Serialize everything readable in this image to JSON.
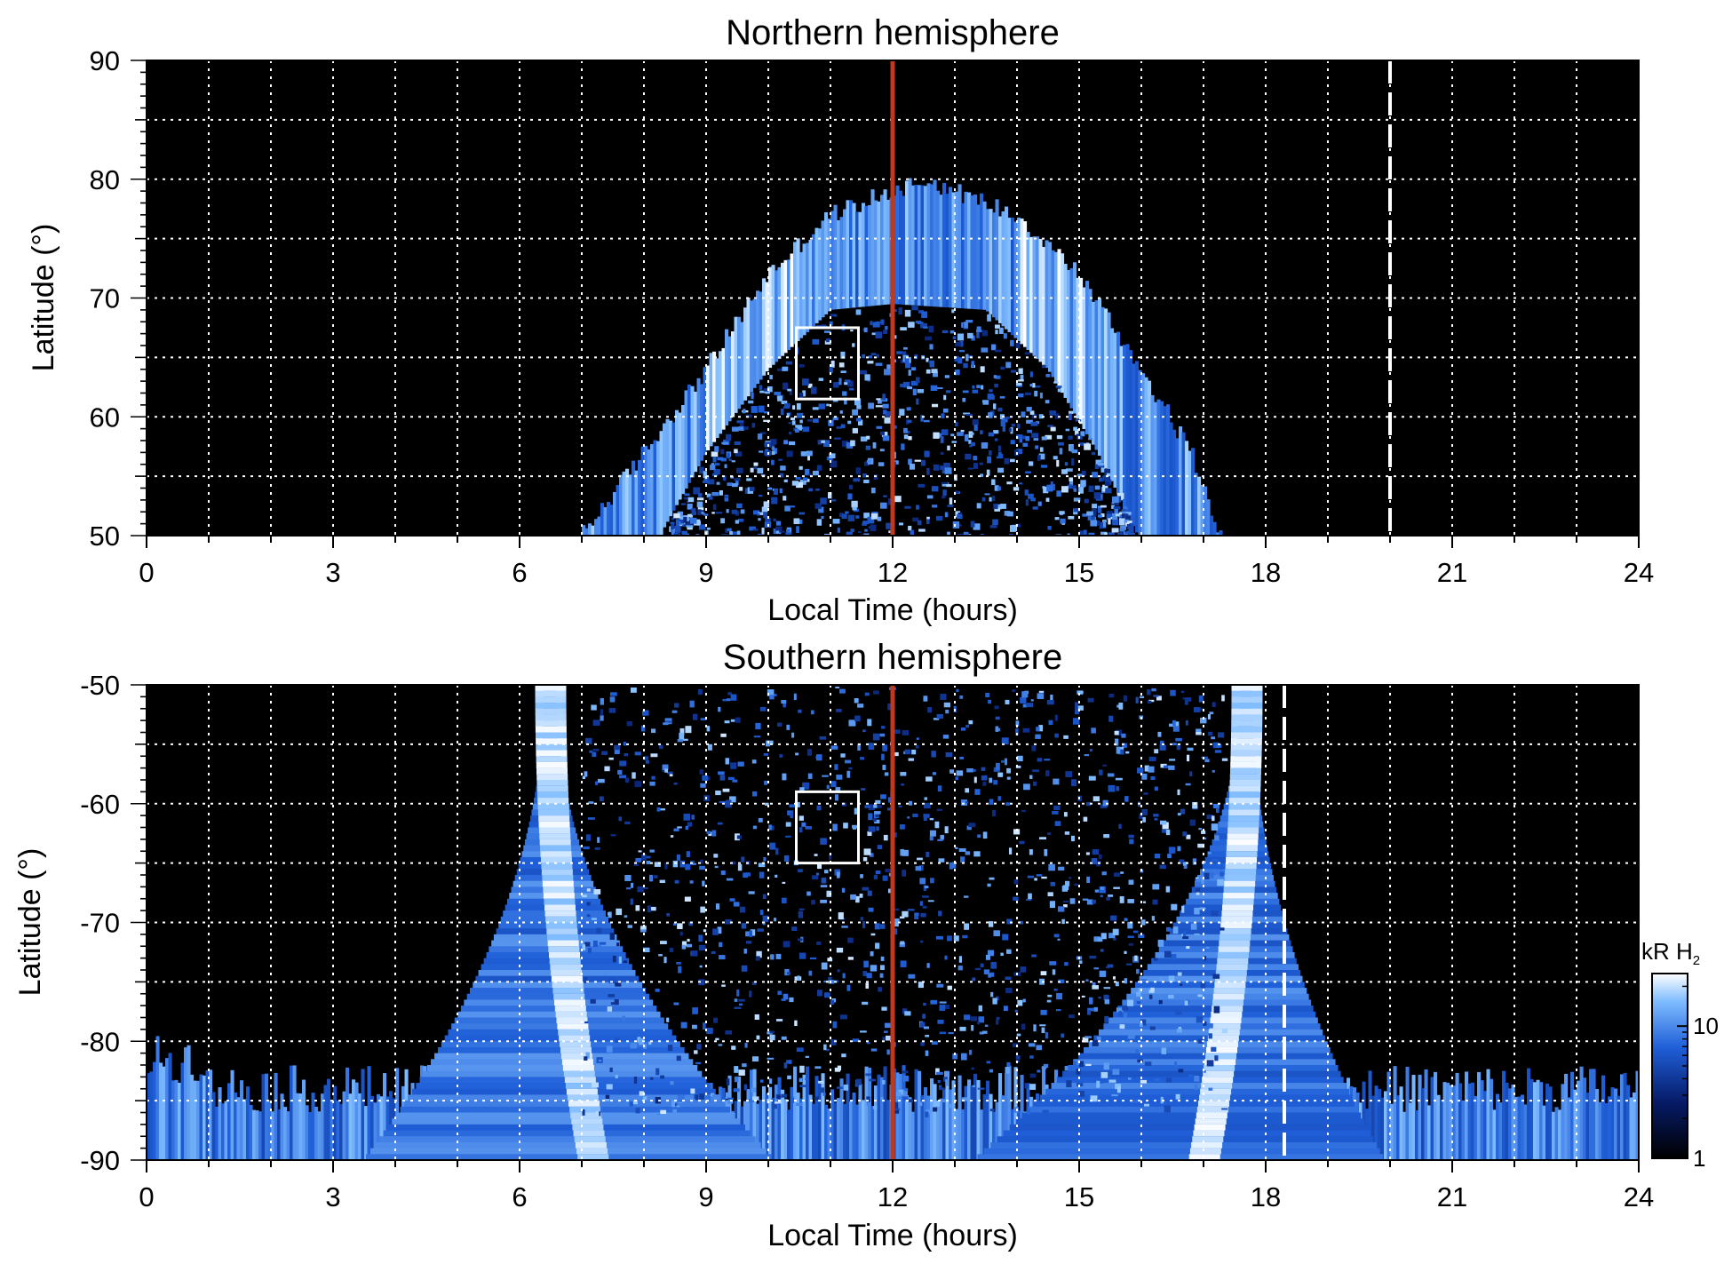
{
  "figure": {
    "colors": {
      "background": "#000000",
      "aurora_dark": "#0a2a8a",
      "aurora_mid": "#1f6fe6",
      "aurora_bright": "#9fd0ff",
      "noon_line": "#c0391b",
      "grid": "#ffffff",
      "box": "#ffffff"
    }
  },
  "chart_data": [
    {
      "type": "heatmap",
      "title": "Northern hemisphere",
      "xlabel": "Local Time (hours)",
      "ylabel": "Latitude (°)",
      "xlim": [
        0,
        24
      ],
      "ylim": [
        50,
        90
      ],
      "xticks": [
        "0",
        "3",
        "6",
        "9",
        "12",
        "15",
        "18",
        "21",
        "24"
      ],
      "yticks": [
        "50",
        "60",
        "70",
        "80",
        "90"
      ],
      "grid": true,
      "noon_line_x": 12,
      "dashed_line_x": 20,
      "box": {
        "x": [
          10.45,
          11.45
        ],
        "y": [
          61.5,
          67.5
        ]
      },
      "auroral_oval": {
        "outer_lat": [
          [
            7.0,
            50
          ],
          [
            8.0,
            57
          ],
          [
            9.0,
            64
          ],
          [
            10.0,
            72
          ],
          [
            11.0,
            77
          ],
          [
            12.5,
            80
          ],
          [
            14.0,
            77
          ],
          [
            15.0,
            72
          ],
          [
            16.0,
            64
          ],
          [
            16.8,
            57
          ],
          [
            17.3,
            50
          ]
        ],
        "inner_lat": [
          [
            8.25,
            50
          ],
          [
            9.0,
            57
          ],
          [
            10.0,
            64
          ],
          [
            11.0,
            69
          ],
          [
            12.0,
            69.5
          ],
          [
            13.5,
            69
          ],
          [
            14.5,
            64
          ],
          [
            15.3,
            57
          ],
          [
            15.95,
            50
          ]
        ]
      }
    },
    {
      "type": "heatmap",
      "title": "Southern hemisphere",
      "xlabel": "Local Time (hours)",
      "ylabel": "Latitude (°)",
      "xlim": [
        0,
        24
      ],
      "ylim": [
        -90,
        -50
      ],
      "xticks": [
        "0",
        "3",
        "6",
        "9",
        "12",
        "15",
        "18",
        "21",
        "24"
      ],
      "yticks": [
        "-50",
        "-60",
        "-70",
        "-80",
        "-90"
      ],
      "grid": true,
      "noon_line_x": 12,
      "dashed_line_x": 18.3,
      "box": {
        "x": [
          10.45,
          11.45
        ],
        "y": [
          -65,
          -59
        ]
      },
      "dawn_arc_peak_x": 6.5,
      "dusk_arc_peak_x": 17.7,
      "colorbar": {
        "label": "kR H",
        "label_sub": "2",
        "scale": "log",
        "range": [
          1,
          25
        ],
        "ticks": [
          "1",
          "10"
        ],
        "tick_values": [
          1,
          10
        ]
      }
    }
  ]
}
